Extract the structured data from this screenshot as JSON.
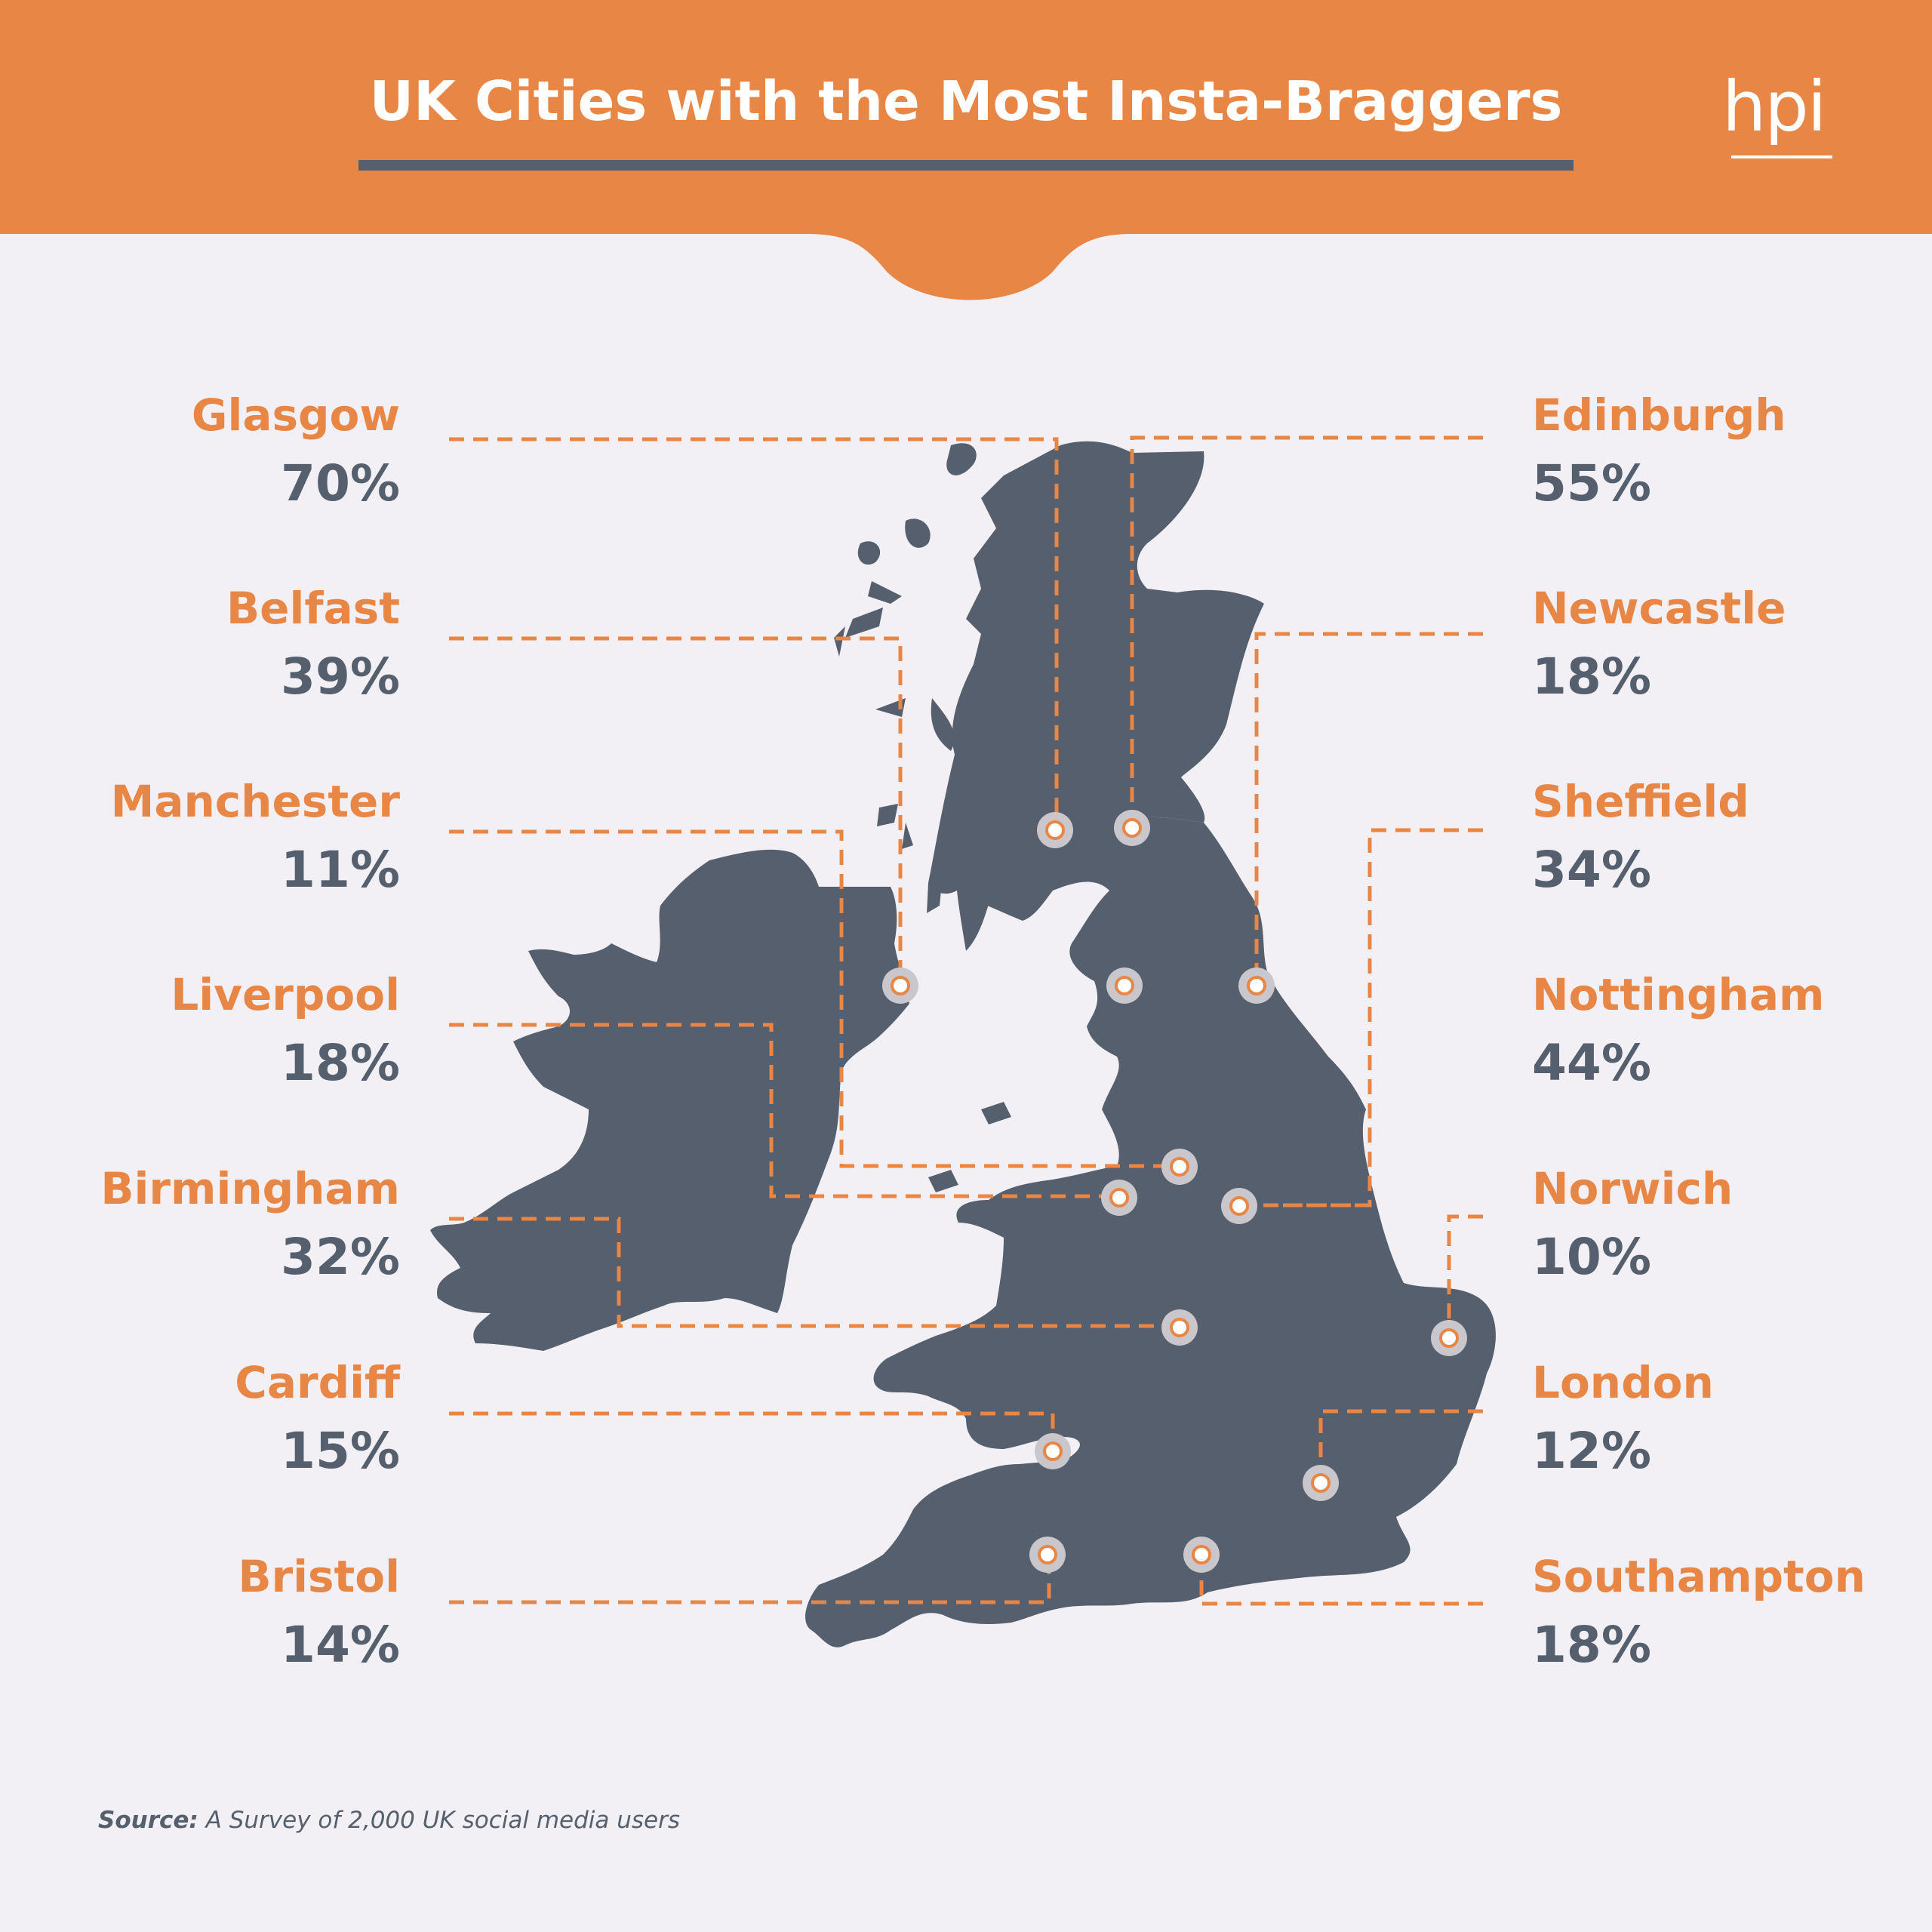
{
  "header": {
    "title": "UK Cities with the Most Insta-Braggers",
    "logo": "hpi"
  },
  "colors": {
    "accent": "#e88646",
    "land": "#555f6e",
    "background": "#f2f0f4"
  },
  "cities": [
    {
      "id": "glasgow",
      "name": "Glasgow",
      "value": "70%",
      "side": "left"
    },
    {
      "id": "belfast",
      "name": "Belfast",
      "value": "39%",
      "side": "left"
    },
    {
      "id": "manchester",
      "name": "Manchester",
      "value": "11%",
      "side": "left"
    },
    {
      "id": "liverpool",
      "name": "Liverpool",
      "value": "18%",
      "side": "left"
    },
    {
      "id": "birmingham",
      "name": "Birmingham",
      "value": "32%",
      "side": "left"
    },
    {
      "id": "cardiff",
      "name": "Cardiff",
      "value": "15%",
      "side": "left"
    },
    {
      "id": "bristol",
      "name": "Bristol",
      "value": "14%",
      "side": "left"
    },
    {
      "id": "edinburgh",
      "name": "Edinburgh",
      "value": "55%",
      "side": "right"
    },
    {
      "id": "newcastle",
      "name": "Newcastle",
      "value": "18%",
      "side": "right"
    },
    {
      "id": "sheffield",
      "name": "Sheffield",
      "value": "34%",
      "side": "right"
    },
    {
      "id": "nottingham",
      "name": "Nottingham",
      "value": "44%",
      "side": "right"
    },
    {
      "id": "norwich",
      "name": "Norwich",
      "value": "10%",
      "side": "right"
    },
    {
      "id": "london",
      "name": "London",
      "value": "12%",
      "side": "right"
    },
    {
      "id": "southampton",
      "name": "Southampton",
      "value": "18%",
      "side": "right"
    }
  ],
  "source": {
    "label": "Source:",
    "text": "A Survey of 2,000 UK social media users"
  }
}
